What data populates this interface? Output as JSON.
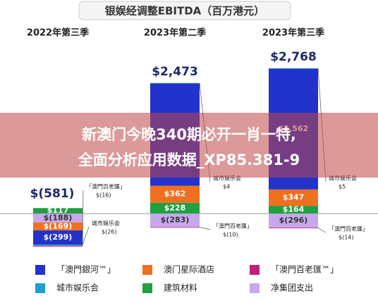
{
  "chart_data": {
    "type": "bar",
    "stacked": true,
    "title": "银娱经调整EBITDA（百万港元）",
    "categories": [
      "2022年第三季",
      "2023年第二季",
      "2023年第三季"
    ],
    "ylim": [
      -700,
      3300
    ],
    "totals": {
      "values": [
        -581,
        2473,
        2768
      ],
      "value_labels": [
        "$(581)",
        "$2,473",
        "$2,768"
      ]
    },
    "series": [
      {
        "name": "「澳門銀河™」",
        "color": "#2233cc",
        "values": [
          -299,
          2172,
          2562
        ],
        "value_labels": [
          "$(299)",
          null,
          "$2,562"
        ]
      },
      {
        "name": "澳门星际酒店",
        "color": "#f07020",
        "values": [
          -169,
          362,
          347
        ],
        "value_labels": [
          "$(169)",
          "$362",
          "$347"
        ]
      },
      {
        "name": "「澳門百老匯™」",
        "color": "#c0207a",
        "callout_name": "「澳門百老匯」",
        "values": [
          -16,
          -10,
          -14
        ],
        "value_labels": [
          "$(16)",
          "$(10)",
          "$(14)"
        ]
      },
      {
        "name": "城市娱乐会",
        "color": "#20a0d0",
        "callout_name": "城市娱乐会",
        "values": [
          -26,
          4,
          5
        ],
        "value_labels": [
          "$(26)",
          "$4",
          "$5"
        ]
      },
      {
        "name": "建筑材料",
        "color": "#20a040",
        "values": [
          117,
          228,
          164
        ],
        "value_labels": [
          "$117",
          "$228",
          "$164"
        ]
      },
      {
        "name": "净集团支出",
        "color": "#c8a8ec",
        "values": [
          -188,
          -283,
          -296
        ],
        "value_labels": [
          "$(188)",
          "$(283)",
          "$(296)"
        ]
      }
    ]
  },
  "watermark": {
    "lines": [
      "新澳门今晚340期必开一肖一特,",
      "全面分析应用数据_XP85.381-9"
    ]
  }
}
